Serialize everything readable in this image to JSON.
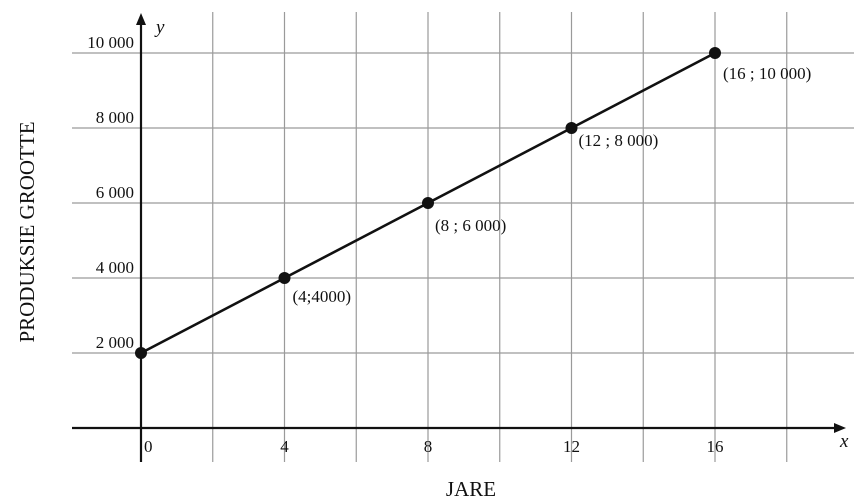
{
  "chart_data": {
    "type": "line",
    "title": "",
    "xlabel": "JARE",
    "ylabel": "PRODUKSIE GROOTTE",
    "x_axis_symbol": "x",
    "y_axis_symbol": "y",
    "xlim": [
      0,
      19
    ],
    "ylim": [
      0,
      11000
    ],
    "grid": true,
    "x_ticks": [
      {
        "value": 0,
        "label": "0"
      },
      {
        "value": 4,
        "label": "4"
      },
      {
        "value": 8,
        "label": "8"
      },
      {
        "value": 12,
        "label": "12"
      },
      {
        "value": 16,
        "label": "16"
      }
    ],
    "y_ticks": [
      {
        "value": 2000,
        "label": "2 000"
      },
      {
        "value": 4000,
        "label": "4 000"
      },
      {
        "value": 6000,
        "label": "6 000"
      },
      {
        "value": 8000,
        "label": "8 000"
      },
      {
        "value": 10000,
        "label": "10 000"
      }
    ],
    "series": [
      {
        "points": [
          {
            "x": 0,
            "y": 2000,
            "label": ""
          },
          {
            "x": 4,
            "y": 4000,
            "label": "(4;4000)"
          },
          {
            "x": 8,
            "y": 6000,
            "label": "(8 ; 6 000)"
          },
          {
            "x": 12,
            "y": 8000,
            "label": "(12 ; 8 000)"
          },
          {
            "x": 16,
            "y": 10000,
            "label": "(16 ; 10 000)"
          }
        ]
      }
    ]
  }
}
